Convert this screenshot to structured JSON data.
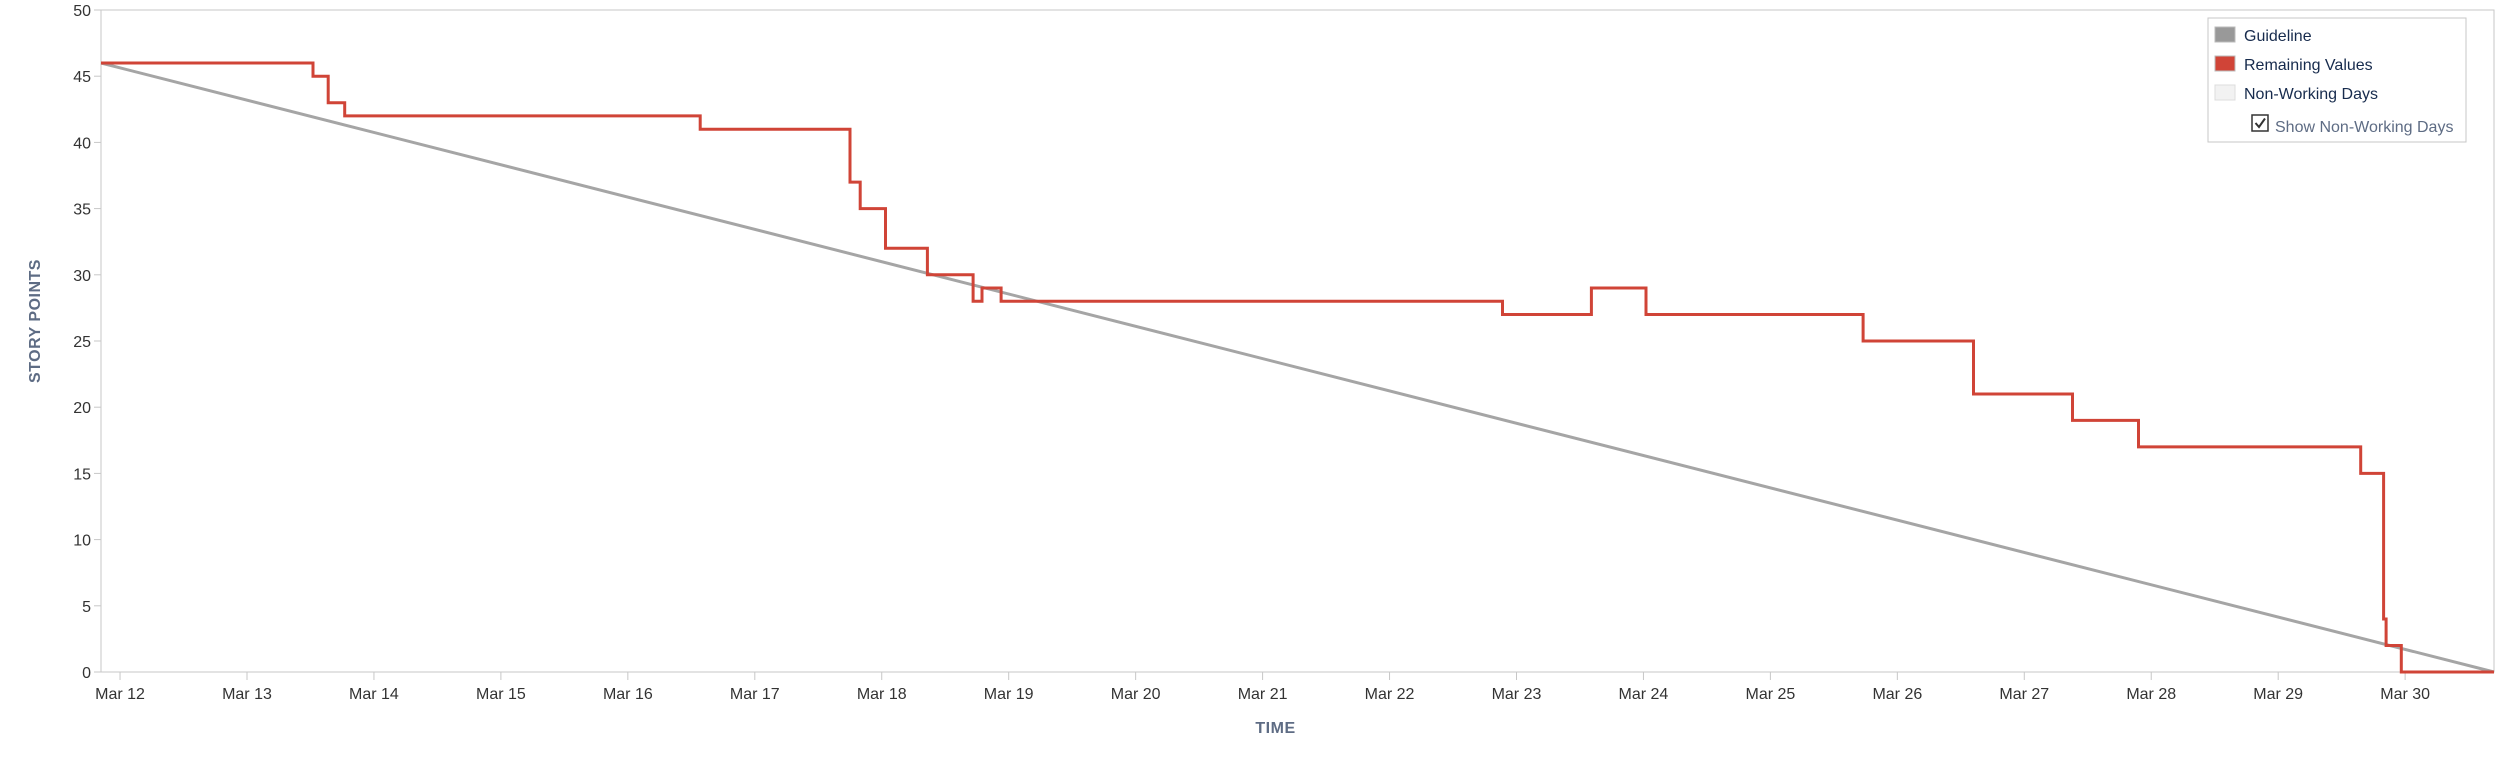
{
  "chart_data": {
    "type": "line",
    "xlabel": "TIME",
    "ylabel": "STORY POINTS",
    "ylim": [
      0,
      50
    ],
    "xlim": [
      0,
      18.85
    ],
    "yticks": [
      0,
      5,
      10,
      15,
      20,
      25,
      30,
      35,
      40,
      45,
      50
    ],
    "xticks": [
      {
        "x": 0.15,
        "label": "Mar 12"
      },
      {
        "x": 1.15,
        "label": "Mar 13"
      },
      {
        "x": 2.15,
        "label": "Mar 14"
      },
      {
        "x": 3.15,
        "label": "Mar 15"
      },
      {
        "x": 4.15,
        "label": "Mar 16"
      },
      {
        "x": 5.15,
        "label": "Mar 17"
      },
      {
        "x": 6.15,
        "label": "Mar 18"
      },
      {
        "x": 7.15,
        "label": "Mar 19"
      },
      {
        "x": 8.15,
        "label": "Mar 20"
      },
      {
        "x": 9.15,
        "label": "Mar 21"
      },
      {
        "x": 10.15,
        "label": "Mar 22"
      },
      {
        "x": 11.15,
        "label": "Mar 23"
      },
      {
        "x": 12.15,
        "label": "Mar 24"
      },
      {
        "x": 13.15,
        "label": "Mar 25"
      },
      {
        "x": 14.15,
        "label": "Mar 26"
      },
      {
        "x": 15.15,
        "label": "Mar 27"
      },
      {
        "x": 16.15,
        "label": "Mar 28"
      },
      {
        "x": 17.15,
        "label": "Mar 29"
      },
      {
        "x": 18.15,
        "label": "Mar 30"
      }
    ],
    "series": [
      {
        "name": "Guideline",
        "color": "#a5a5a5",
        "step": false,
        "points": [
          [
            0,
            46
          ],
          [
            18.85,
            0
          ]
        ]
      },
      {
        "name": "Remaining Values",
        "color": "#d04437",
        "step": true,
        "points": [
          [
            0,
            46
          ],
          [
            1.67,
            45
          ],
          [
            1.79,
            43
          ],
          [
            1.92,
            42
          ],
          [
            4.72,
            41
          ],
          [
            5.9,
            37
          ],
          [
            5.98,
            35
          ],
          [
            6.18,
            32
          ],
          [
            6.51,
            30
          ],
          [
            6.87,
            28
          ],
          [
            6.94,
            29
          ],
          [
            7.09,
            28
          ],
          [
            11.04,
            27
          ],
          [
            11.74,
            29
          ],
          [
            12.17,
            27
          ],
          [
            13.88,
            25
          ],
          [
            14.75,
            21
          ],
          [
            15.53,
            19
          ],
          [
            16.05,
            17
          ],
          [
            17.8,
            15
          ],
          [
            17.98,
            4
          ],
          [
            18.0,
            2
          ],
          [
            18.12,
            0
          ],
          [
            18.85,
            0
          ]
        ]
      }
    ],
    "legend": {
      "position": "top-right",
      "items": [
        {
          "label": "Guideline",
          "color": "#999999"
        },
        {
          "label": "Remaining Values",
          "color": "#d04437"
        },
        {
          "label": "Non-Working Days",
          "color": "#f2f2f2"
        }
      ],
      "checkbox_label": "Show Non-Working Days",
      "checkbox_checked": true
    },
    "grid": false
  }
}
